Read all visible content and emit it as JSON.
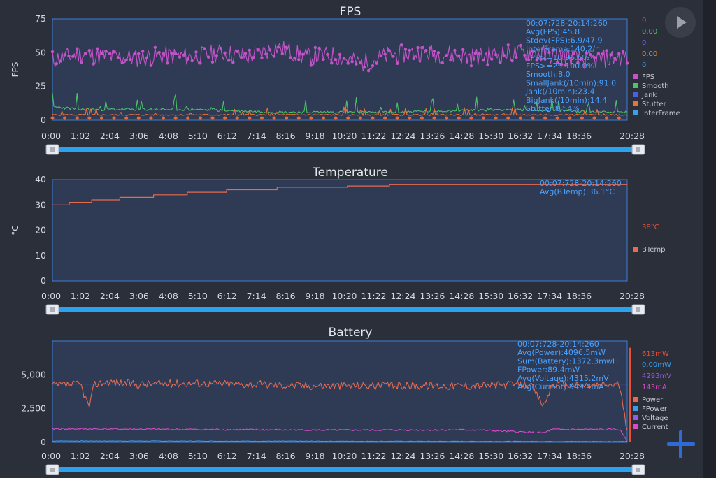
{
  "colors": {
    "bg": "#2b2f3a",
    "plot_bg": "#2f3a55",
    "frame": "#3d7fd6",
    "slider": "#29a3ef",
    "stat": "#4aa3ff"
  },
  "icons": {
    "play": "play-icon",
    "add": "plus-icon"
  },
  "x_ticks": [
    "0:00",
    "1:02",
    "2:04",
    "3:06",
    "4:08",
    "5:10",
    "6:12",
    "7:14",
    "8:16",
    "9:18",
    "10:20",
    "11:22",
    "12:24",
    "13:26",
    "14:28",
    "15:30",
    "16:32",
    "17:34",
    "18:36",
    "20:28"
  ],
  "chart_data": [
    {
      "type": "line",
      "title": "FPS",
      "ylabel": "FPS",
      "ylim": [
        0,
        75
      ],
      "y_ticks": [
        "0",
        "25",
        "50",
        "75"
      ],
      "x_range_minutes": [
        0,
        20.47
      ],
      "stats": [
        "00:07:728-20:14:260",
        "Avg(FPS):45.8",
        "Stdev(FPS):6.9/47.9",
        "InterFrame:140.2/h",
        "FPS>=18:96.5%",
        "FPS>=25:100.0%",
        "Smooth:8.0",
        "SmallJank(/10min):91.0",
        "Jank(/10min):23.4",
        "BigJank(/10min):14.4",
        "Stutter:8.54%"
      ],
      "legend": [
        {
          "name": "FPS",
          "color": "#c353c9"
        },
        {
          "name": "Smooth",
          "color": "#4cc26a"
        },
        {
          "name": "Jank",
          "color": "#4a5ee8"
        },
        {
          "name": "Stutter",
          "color": "#e8733a"
        },
        {
          "name": "InterFrame",
          "color": "#3a9ee8"
        }
      ],
      "current_values": [
        {
          "value": "0",
          "color": "#d94b62"
        },
        {
          "value": "0.00",
          "color": "#4cc26a"
        },
        {
          "value": "0",
          "color": "#6a6ae8"
        },
        {
          "value": "0.00",
          "color": "#e88a2a"
        },
        {
          "value": "0",
          "color": "#3a9ee8"
        }
      ],
      "series": [
        {
          "name": "FPS",
          "color": "#c353c9",
          "style": "noisy",
          "base": [
            [
              0,
              45
            ],
            [
              1,
              49
            ],
            [
              2,
              47
            ],
            [
              3,
              46
            ],
            [
              4,
              48
            ],
            [
              5,
              47
            ],
            [
              6,
              50
            ],
            [
              7,
              47
            ],
            [
              8,
              54
            ],
            [
              9,
              47
            ],
            [
              10,
              48
            ],
            [
              11,
              42
            ],
            [
              12,
              48
            ],
            [
              13,
              50
            ],
            [
              14,
              49
            ],
            [
              15,
              47
            ],
            [
              16,
              49
            ],
            [
              17,
              50
            ],
            [
              18,
              48
            ],
            [
              19,
              44
            ],
            [
              20.47,
              47
            ]
          ],
          "amp": 7,
          "seed": 11
        },
        {
          "name": "Smooth",
          "color": "#4cc26a",
          "style": "spiky",
          "base": [
            [
              0,
              10
            ],
            [
              1,
              8
            ],
            [
              2,
              8
            ],
            [
              3,
              8
            ],
            [
              4,
              8
            ],
            [
              5,
              8
            ],
            [
              8,
              6
            ],
            [
              12,
              6
            ],
            [
              16,
              8
            ],
            [
              20.47,
              6
            ]
          ],
          "amp": 2,
          "seed": 23
        },
        {
          "name": "Stutter",
          "color": "#e8733a",
          "style": "spiky",
          "base": [
            [
              0,
              4
            ],
            [
              20.47,
              4
            ]
          ],
          "amp": 1,
          "seed": 5
        }
      ]
    },
    {
      "type": "line",
      "title": "Temperature",
      "ylabel": "°C",
      "ylim": [
        0,
        40
      ],
      "y_ticks": [
        "0",
        "10",
        "20",
        "30",
        "40"
      ],
      "x_range_minutes": [
        0,
        20.47
      ],
      "stats": [
        "00:07:728-20:14:260",
        "Avg(BTemp):36.1°C"
      ],
      "legend": [
        {
          "name": "BTemp",
          "color": "#e66a4e"
        }
      ],
      "current_values": [
        {
          "value": "38°C",
          "color": "#e6503c"
        }
      ],
      "series": [
        {
          "name": "BTemp",
          "color": "#e66a4e",
          "style": "step",
          "points": [
            [
              0,
              30
            ],
            [
              0.6,
              31
            ],
            [
              1.4,
              32
            ],
            [
              2.4,
              33
            ],
            [
              3.6,
              34
            ],
            [
              4.8,
              35
            ],
            [
              6.2,
              36
            ],
            [
              8.0,
              37
            ],
            [
              10.5,
              37.5
            ],
            [
              12.0,
              38
            ],
            [
              20.47,
              38
            ]
          ]
        }
      ]
    },
    {
      "type": "line",
      "title": "Battery",
      "ylabel": "",
      "ylim": [
        0,
        7500
      ],
      "y_ticks": [
        "0",
        "2,500",
        "5,000"
      ],
      "x_range_minutes": [
        0,
        20.47
      ],
      "stats": [
        "00:07:728-20:14:260",
        "Avg(Power):4096.5mW",
        "Sum(Battery):1372.3mwH",
        "FPower:89.4mW",
        "Avg(Voltage):4315.2mV",
        "Avg(Current):949.4mA"
      ],
      "legend": [
        {
          "name": "Power",
          "color": "#e66a4e"
        },
        {
          "name": "FPower",
          "color": "#3a9ee8"
        },
        {
          "name": "Voltage",
          "color": "#9a5ae8"
        },
        {
          "name": "Current",
          "color": "#d94bc9"
        }
      ],
      "current_values": [
        {
          "value": "613mW",
          "color": "#e6503c"
        },
        {
          "value": "0.00mW",
          "color": "#3a9ee8"
        },
        {
          "value": "4293mV",
          "color": "#9a5ae8"
        },
        {
          "value": "143mA",
          "color": "#d94bc9"
        }
      ],
      "series": [
        {
          "name": "Power",
          "color": "#e66a4e",
          "style": "noisy",
          "base": [
            [
              0,
              4200
            ],
            [
              1,
              4300
            ],
            [
              1.3,
              2600
            ],
            [
              1.5,
              4300
            ],
            [
              2,
              4500
            ],
            [
              3,
              4300
            ],
            [
              5,
              4400
            ],
            [
              7,
              4300
            ],
            [
              9,
              4200
            ],
            [
              12,
              4200
            ],
            [
              15,
              4200
            ],
            [
              17,
              4300
            ],
            [
              17.5,
              2700
            ],
            [
              17.8,
              4300
            ],
            [
              19,
              4200
            ],
            [
              20.2,
              4300
            ],
            [
              20.47,
              600
            ]
          ],
          "amp": 300,
          "seed": 37
        },
        {
          "name": "Current",
          "color": "#d94bc9",
          "style": "noisy",
          "base": [
            [
              0,
              1000
            ],
            [
              5,
              950
            ],
            [
              10,
              900
            ],
            [
              15,
              920
            ],
            [
              17.5,
              700
            ],
            [
              17.8,
              950
            ],
            [
              20.2,
              950
            ],
            [
              20.47,
              143
            ]
          ],
          "amp": 60,
          "seed": 41
        },
        {
          "name": "FPower",
          "color": "#3a9ee8",
          "style": "noisy",
          "base": [
            [
              0,
              100
            ],
            [
              20.47,
              60
            ]
          ],
          "amp": 20,
          "seed": 7
        }
      ],
      "avg_line": 4315
    }
  ]
}
